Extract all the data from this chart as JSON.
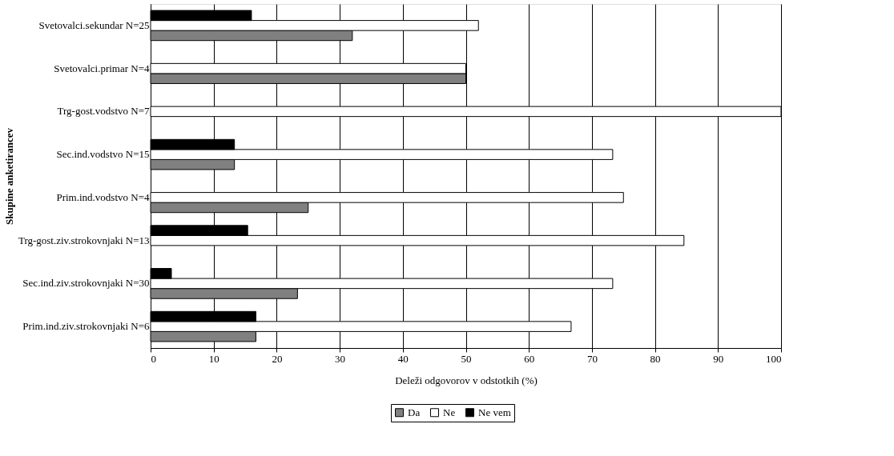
{
  "chart_data": {
    "type": "bar",
    "orientation": "horizontal",
    "xlabel": "Deleži odgovorov v odstotkih (%)",
    "ylabel": "Skupine anketirancev",
    "categories": [
      "Svetovalci.sekundar N=25",
      "Svetovalci.primar N=4",
      "Trg-gost.vodstvo N=7",
      "Sec.ind.vodstvo N=15",
      "Prim.ind.vodstvo N=4",
      "Trg-gost.ziv.strokovnjaki N=13",
      "Sec.ind.ziv.strokovnjaki N=30",
      "Prim.ind.ziv.strokovnjaki N=6"
    ],
    "series": [
      {
        "name": "Da",
        "color": "#808080",
        "values": [
          32,
          50,
          0,
          13.3,
          25,
          0,
          23.3,
          16.7
        ]
      },
      {
        "name": "Ne",
        "color": "#ffffff",
        "values": [
          52,
          50,
          100,
          73.3,
          75,
          84.6,
          73.3,
          66.7
        ]
      },
      {
        "name": "Ne vem",
        "color": "#000000",
        "values": [
          16,
          0,
          0,
          13.3,
          0,
          15.4,
          3.3,
          16.7
        ]
      }
    ],
    "xlim": [
      0,
      100
    ],
    "xticks": [
      0,
      10,
      20,
      30,
      40,
      50,
      60,
      70,
      80,
      90,
      100
    ],
    "grid": "x",
    "legend": "bottom"
  }
}
